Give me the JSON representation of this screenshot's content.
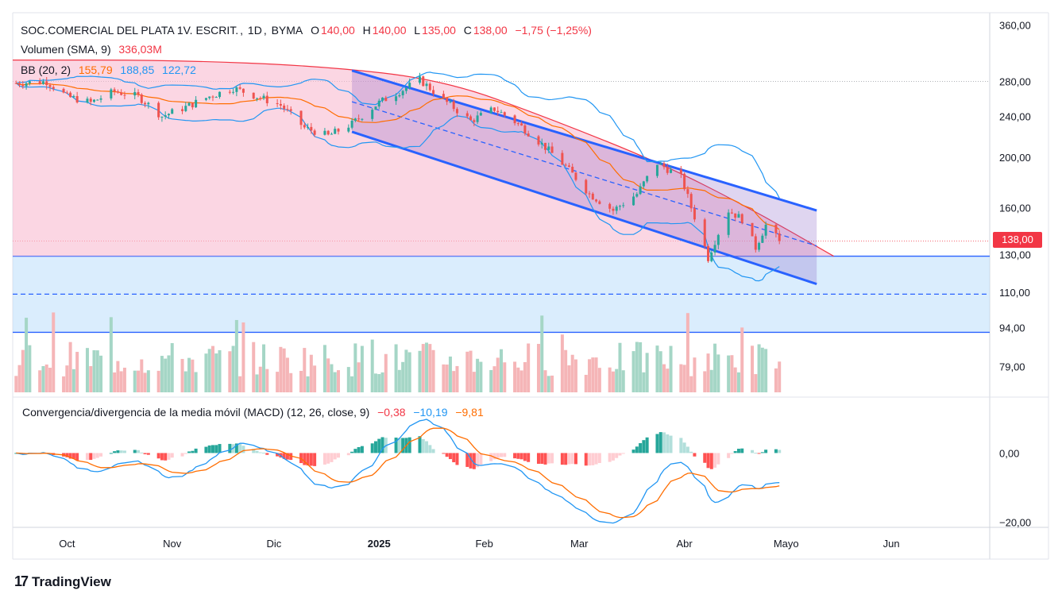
{
  "header": {
    "instrument": "SOC.COMERCIAL DEL PLATA 1V. ESCRIT.",
    "interval": "1D",
    "exchange": "BYMA",
    "open_label": "O",
    "open": "140,00",
    "high_label": "H",
    "high": "140,00",
    "low_label": "L",
    "low": "135,00",
    "close_label": "C",
    "close": "138,00",
    "change": "−1,75 (−1,25%)"
  },
  "volume_legend": {
    "label": "Volumen (SMA, 9)",
    "value": "336,03M"
  },
  "bb_legend": {
    "label": "BB (20, 2)",
    "basis": "155,79",
    "upper": "188,85",
    "lower": "122,72"
  },
  "macd_legend": {
    "label": "Convergencia/divergencia de la media móvil (MACD) (12, 26, close, 9)",
    "hist": "−0,38",
    "macd": "−10,19",
    "signal": "−9,81"
  },
  "price_badge": "138,00",
  "brand": {
    "logo": "17",
    "name": "TradingView"
  },
  "colors": {
    "up": "#26a69a",
    "down": "#ef5350",
    "vol_up": "#a5d6c6",
    "vol_down": "#f5b5b7",
    "bb": "#2196f3",
    "basis": "#ff6d00",
    "channel": "#2962ff",
    "arc": "#f23645",
    "macd": "#2196f3",
    "signal": "#ff6d00"
  },
  "chart_data": [
    {
      "type": "candlestick",
      "title": "SOC.COMERCIAL DEL PLATA 1V. ESCRIT., 1D, BYMA",
      "y_scale": "log",
      "ylim": [
        70,
        380
      ],
      "y_ticks": [
        "360,00",
        "280,00",
        "240,00",
        "200,00",
        "160,00",
        "130,00",
        "110,00",
        "94,00",
        "79,00"
      ],
      "y_tick_values": [
        360,
        280,
        240,
        200,
        160,
        130,
        110,
        94,
        79
      ],
      "x_ticks": [
        "Oct",
        "Nov",
        "Dic",
        "2025",
        "Feb",
        "Mar",
        "Abr",
        "Mayo",
        "Jun"
      ],
      "x_tick_dates": [
        "2024-10-01",
        "2024-11-01",
        "2024-12-01",
        "2025-01-01",
        "2025-02-01",
        "2025-03-01",
        "2025-04-01",
        "2025-05-01",
        "2025-06-01"
      ],
      "x_range": [
        "2024-09-15",
        "2025-06-30"
      ],
      "last_price": 138,
      "price_anchors": [
        [
          "2024-09-16",
          278
        ],
        [
          "2024-09-25",
          280
        ],
        [
          "2024-10-01",
          262
        ],
        [
          "2024-10-08",
          255
        ],
        [
          "2024-10-15",
          268
        ],
        [
          "2024-10-22",
          262
        ],
        [
          "2024-10-29",
          240
        ],
        [
          "2024-11-05",
          250
        ],
        [
          "2024-11-12",
          262
        ],
        [
          "2024-11-19",
          272
        ],
        [
          "2024-11-26",
          262
        ],
        [
          "2024-12-03",
          252
        ],
        [
          "2024-12-10",
          228
        ],
        [
          "2024-12-17",
          220
        ],
        [
          "2024-12-24",
          232
        ],
        [
          "2025-01-01",
          255
        ],
        [
          "2025-01-08",
          270
        ],
        [
          "2025-01-13",
          282
        ],
        [
          "2025-01-20",
          258
        ],
        [
          "2025-01-28",
          235
        ],
        [
          "2025-02-04",
          248
        ],
        [
          "2025-02-11",
          232
        ],
        [
          "2025-02-18",
          212
        ],
        [
          "2025-02-25",
          192
        ],
        [
          "2025-03-04",
          170
        ],
        [
          "2025-03-11",
          158
        ],
        [
          "2025-03-18",
          170
        ],
        [
          "2025-03-24",
          195
        ],
        [
          "2025-03-31",
          183
        ],
        [
          "2025-04-03",
          160
        ],
        [
          "2025-04-08",
          128
        ],
        [
          "2025-04-14",
          158
        ],
        [
          "2025-04-18",
          152
        ],
        [
          "2025-04-22",
          134
        ],
        [
          "2025-04-25",
          148
        ],
        [
          "2025-04-29",
          138
        ]
      ],
      "horizontal_levels": [
        129,
        109,
        92
      ],
      "zone": [
        92,
        129
      ],
      "channel_upper": [
        [
          "2024-12-24",
          294
        ],
        [
          "2025-05-10",
          158
        ]
      ],
      "channel_lower": [
        [
          "2024-12-24",
          224
        ],
        [
          "2025-05-10",
          114
        ]
      ],
      "channel_mid": [
        [
          "2024-12-24",
          256
        ],
        [
          "2025-05-10",
          135
        ]
      ],
      "arc_points": [
        [
          "2024-09-15",
          308
        ],
        [
          "2024-11-01",
          308
        ],
        [
          "2024-12-15",
          300
        ],
        [
          "2025-01-20",
          282
        ],
        [
          "2025-02-20",
          238
        ],
        [
          "2025-03-25",
          195
        ],
        [
          "2025-04-20",
          160
        ],
        [
          "2025-05-15",
          129
        ]
      ]
    },
    {
      "type": "bar",
      "title": "Volumen (SMA, 9)",
      "last_sma": "336,03M"
    },
    {
      "type": "macd",
      "title": "MACD (12, 26, close, 9)",
      "y_ticks": [
        "0,00",
        "−20,00"
      ],
      "y_tick_values": [
        0,
        -20
      ],
      "ylim": [
        -21,
        15
      ],
      "last": {
        "hist": -0.38,
        "macd": -10.19,
        "signal": -9.81
      }
    }
  ]
}
